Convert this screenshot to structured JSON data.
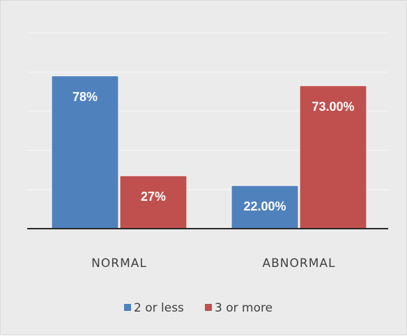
{
  "chart_data": {
    "type": "bar",
    "categories": [
      "NORMAL",
      "ABNORMAL"
    ],
    "series": [
      {
        "name": "2 or less",
        "values": [
          78,
          22
        ],
        "labels": [
          "78%",
          "22.00%"
        ],
        "color": "#4f81bd"
      },
      {
        "name": "3 or more",
        "values": [
          27,
          73
        ],
        "labels": [
          "27%",
          "73.00%"
        ],
        "color": "#c0504d"
      }
    ],
    "ylim": [
      0,
      100
    ],
    "grid": true,
    "legend_position": "bottom",
    "background_color": "#ebebeb",
    "gridline_color": "#f7f7f7",
    "axis_color": "#262626"
  }
}
